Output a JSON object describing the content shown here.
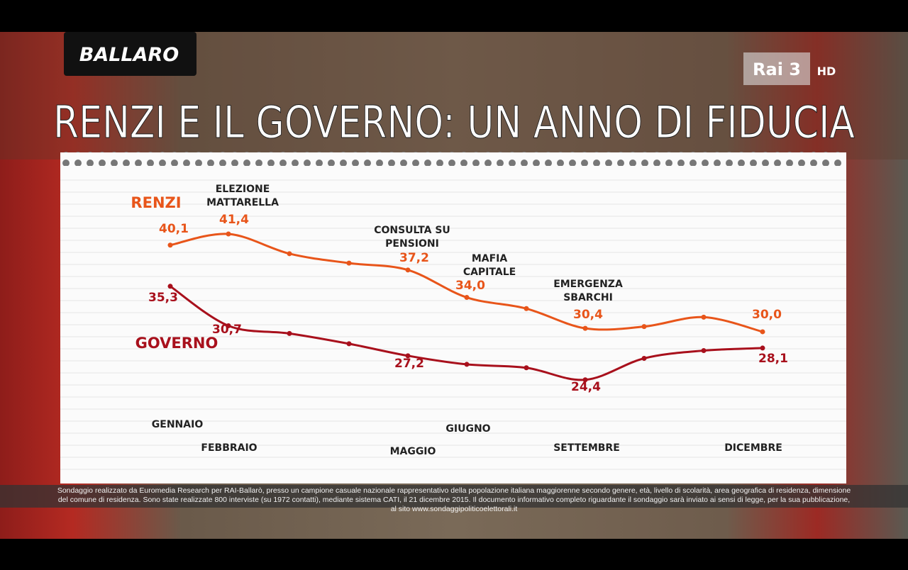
{
  "chart_data": {
    "type": "line",
    "title": "RENZI E IL GOVERNO: UN ANNO DI FIDUCIA",
    "program_logo": "BALLARO",
    "channel_logo": "Rai 3",
    "channel_badge": "HD",
    "categories": [
      "GENNAIO",
      "FEBBRAIO",
      null,
      null,
      "MAGGIO",
      "GIUGNO",
      null,
      "SETTEMBRE",
      null,
      null,
      "DICEMBRE"
    ],
    "series": [
      {
        "name": "RENZI",
        "color": "#e8551a",
        "values": [
          40.1,
          41.4,
          39.1,
          38.0,
          37.2,
          34.0,
          32.7,
          30.4,
          30.6,
          31.7,
          30.0
        ],
        "value_labels": [
          "40,1",
          "41,4",
          null,
          null,
          "37,2",
          "34,0",
          null,
          "30,4",
          null,
          null,
          "30,0"
        ]
      },
      {
        "name": "GOVERNO",
        "color": "#a8101c",
        "values": [
          35.3,
          30.7,
          29.8,
          28.6,
          27.2,
          26.2,
          25.8,
          24.4,
          26.9,
          27.8,
          28.1
        ],
        "value_labels": [
          "35,3",
          "30,7",
          null,
          null,
          "27,2",
          null,
          null,
          "24,4",
          null,
          null,
          "28,1"
        ]
      }
    ],
    "annotations": [
      {
        "lines": [
          "ELEZIONE",
          "MATTARELLA"
        ]
      },
      {
        "lines": [
          "CONSULTA SU",
          "PENSIONI"
        ]
      },
      {
        "lines": [
          "MAFIA",
          "CAPITALE"
        ]
      },
      {
        "lines": [
          "EMERGENZA",
          "SBARCHI"
        ]
      }
    ],
    "footnote": "Sondaggio realizzato da Euromedia Research per RAI-Ballarò, presso un campione casuale nazionale rappresentativo della popolazione italiana maggiorenne secondo genere, età, livello di scolarità, area geografica di residenza, dimensione del comune di residenza. Sono state realizzate 800 interviste (su 1972 contatti), mediante sistema CATI, il 21 dicembre 2015. Il documento informativo completo riguardante il sondaggio sarà inviato ai sensi di legge, per la sua pubblicazione, al sito www.sondaggipoliticoelettorali.it"
  }
}
